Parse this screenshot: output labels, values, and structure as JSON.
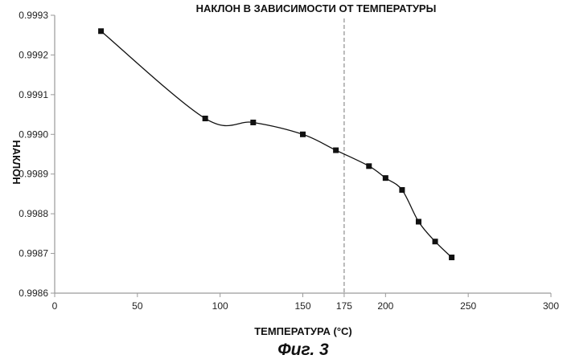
{
  "figure": {
    "caption": "Фиг. 3"
  },
  "chart_data": {
    "type": "line",
    "title": "НАКЛОН В ЗАВИСИМОСТИ ОТ ТЕМПЕРАТУРЫ",
    "xlabel": "ТЕМПЕРАТУРА (°C)",
    "ylabel": "НАКЛОН",
    "xlim": [
      0,
      300
    ],
    "ylim": [
      0.9986,
      0.9993
    ],
    "x_ticks": [
      0,
      50,
      100,
      150,
      175,
      200,
      250,
      300
    ],
    "y_ticks": [
      0.9986,
      0.9987,
      0.9988,
      0.9989,
      0.999,
      0.9991,
      0.9992,
      0.9993
    ],
    "x_tick_labels": [
      "0",
      "50",
      "100",
      "150",
      "175",
      "200",
      "250",
      "300"
    ],
    "y_tick_labels": [
      "0.9986",
      "0.9987",
      "0.9988",
      "0.9989",
      "0.9990",
      "0.9991",
      "0.9992",
      "0.9993"
    ],
    "reference_line_x": 175,
    "grid": false,
    "series": [
      {
        "x": [
          28,
          91,
          120,
          150,
          170,
          190,
          200,
          210,
          220,
          230,
          240
        ],
        "y": [
          0.99926,
          0.99904,
          0.99903,
          0.999,
          0.99896,
          0.99892,
          0.99889,
          0.99886,
          0.99878,
          0.99873,
          0.99869
        ]
      }
    ],
    "colors": {
      "line": "#111111",
      "marker": "#111111",
      "axis": "#9a9a9a",
      "reference_line": "#777777"
    }
  }
}
